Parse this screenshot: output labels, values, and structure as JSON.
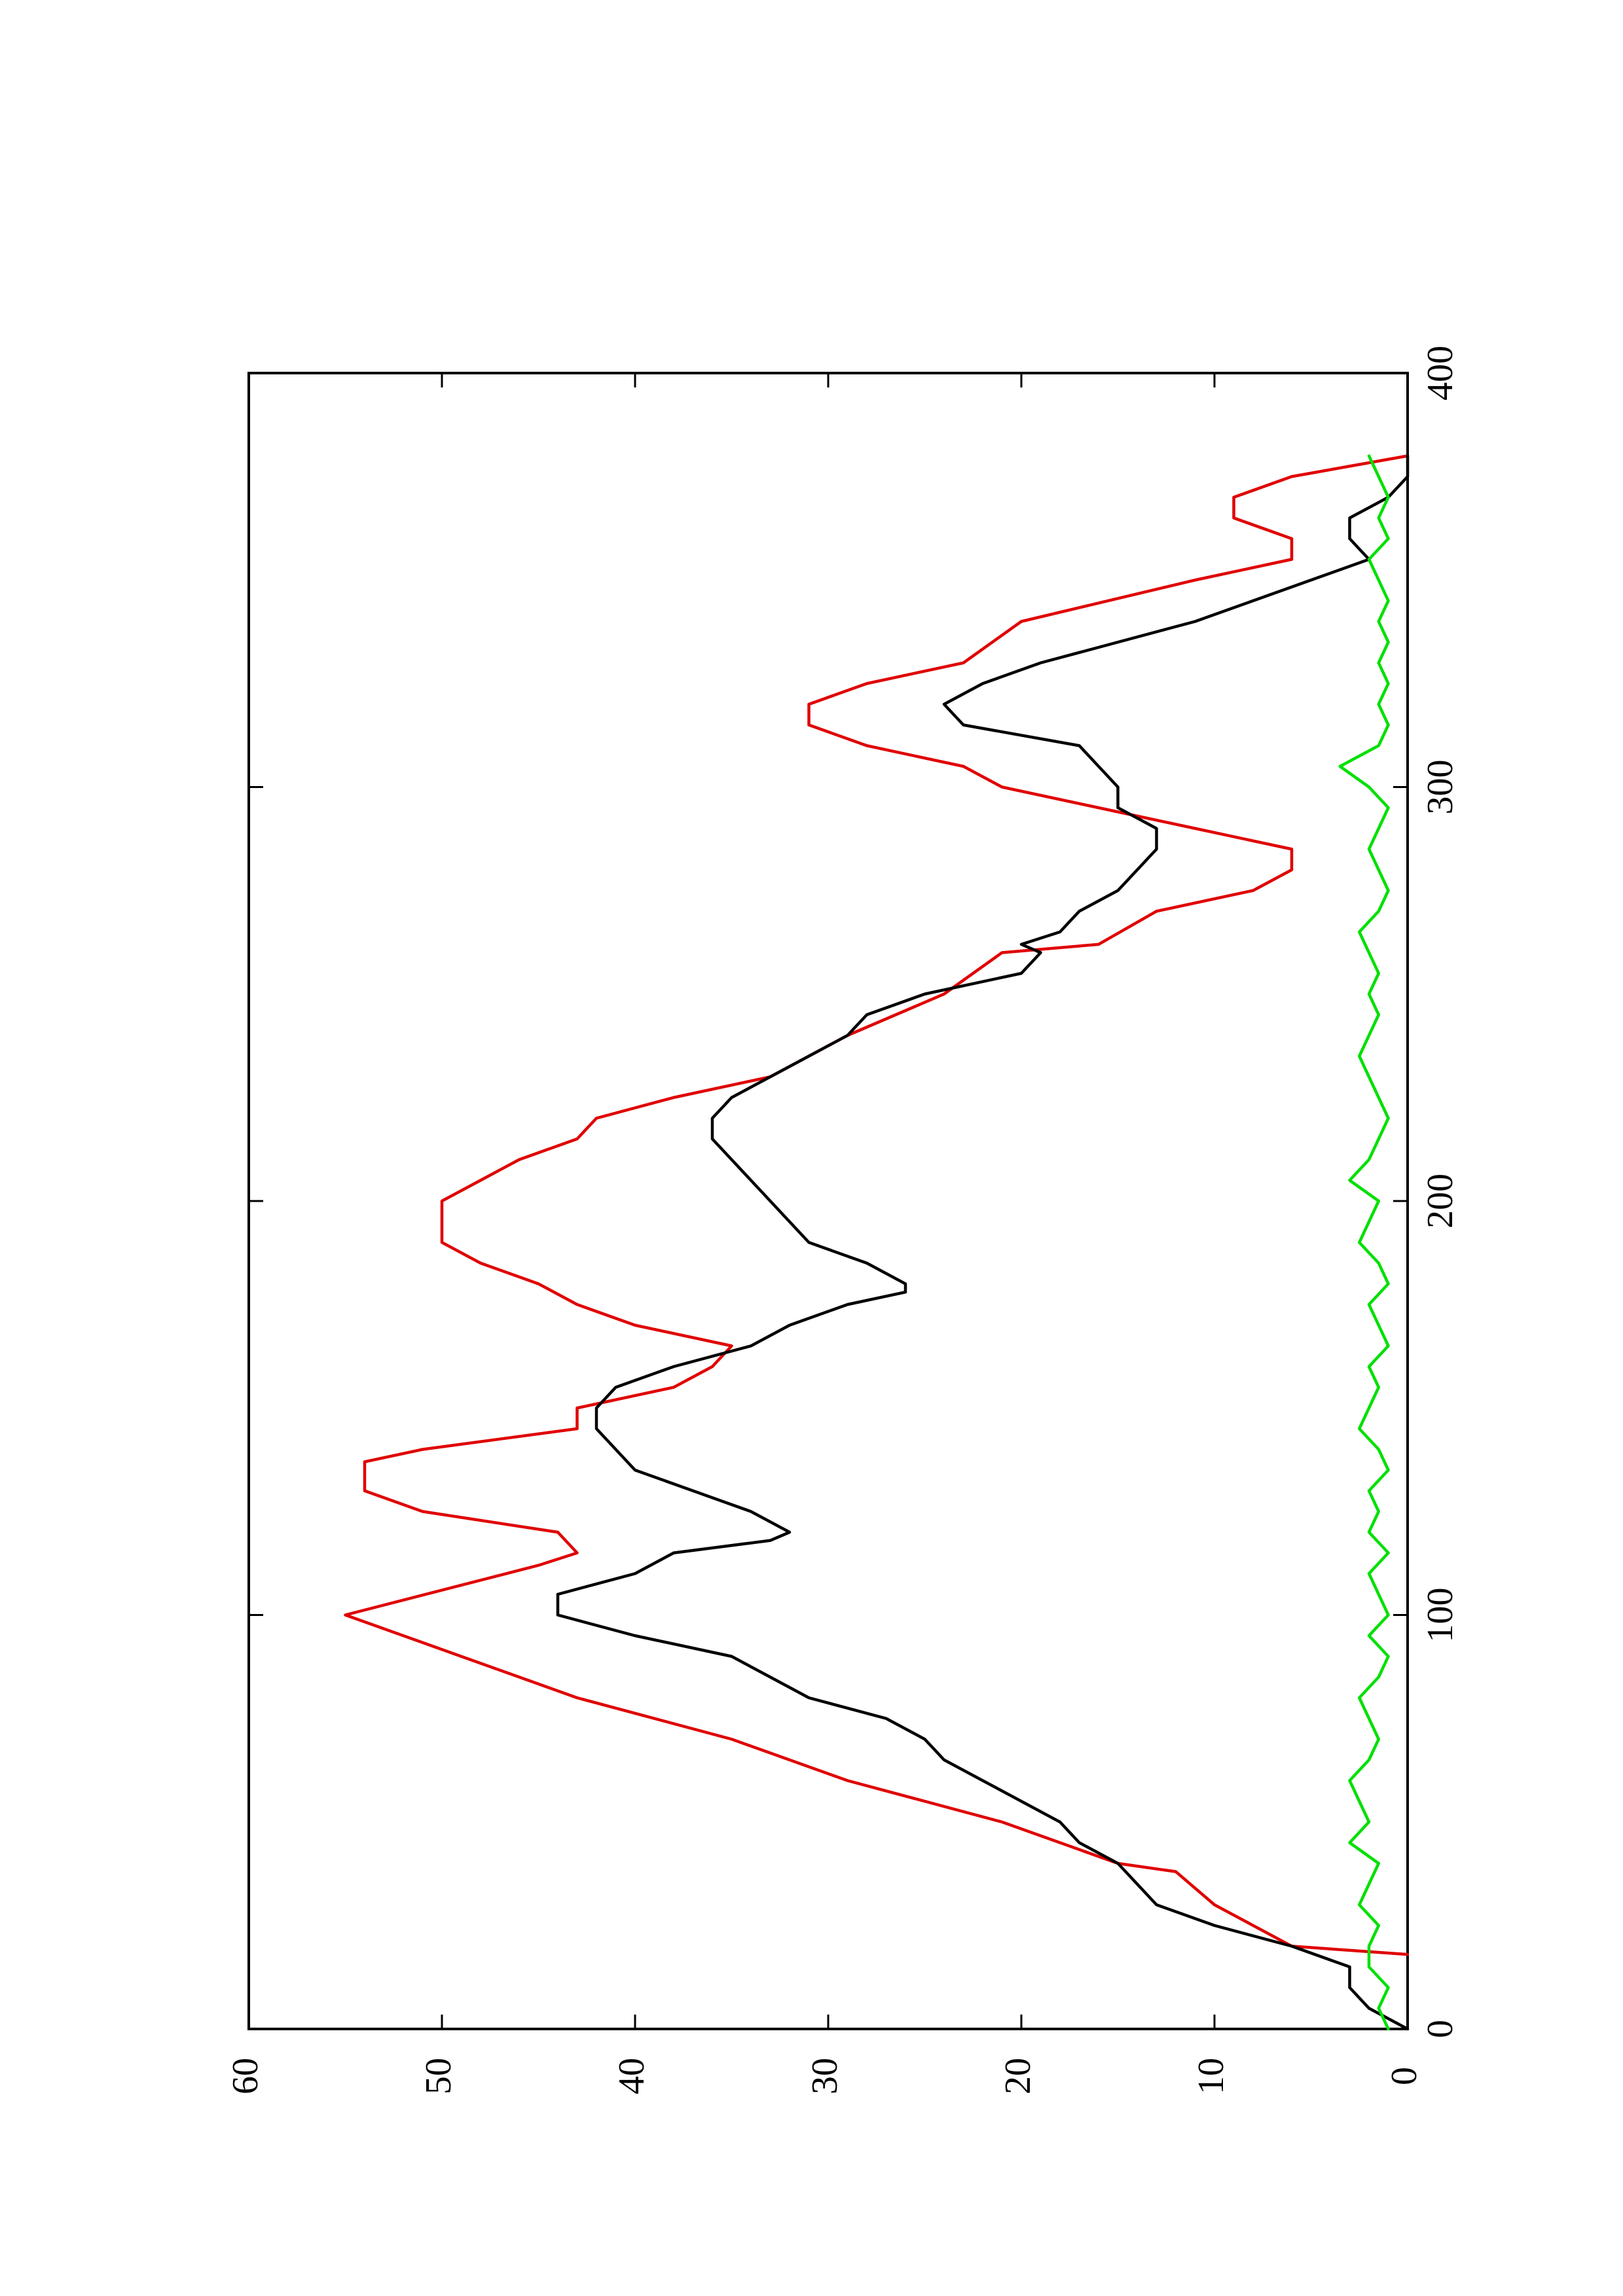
{
  "chart_data": {
    "type": "line",
    "title": "",
    "xlabel": "",
    "ylabel": "",
    "orientation": "rotated 90 degrees counter-clockwise (landscape plot on portrait page)",
    "xlim": [
      0,
      400
    ],
    "ylim": [
      0,
      60
    ],
    "x_ticks": [
      0,
      100,
      200,
      300,
      400
    ],
    "x_tick_labels": [
      "0",
      "100",
      "200",
      "300",
      "400"
    ],
    "y_ticks": [
      0,
      10,
      20,
      30,
      40,
      50,
      60
    ],
    "y_tick_labels": [
      "0",
      "10",
      "20",
      "30",
      "40",
      "50",
      "60"
    ],
    "grid": false,
    "legend": "none",
    "series": [
      {
        "color": "#e00000",
        "x": [
          18,
          20,
          30,
          38,
          40,
          50,
          60,
          70,
          80,
          90,
          100,
          112,
          115,
          120,
          125,
          130,
          137,
          140,
          145,
          150,
          155,
          160,
          165,
          170,
          175,
          180,
          185,
          190,
          195,
          200,
          205,
          210,
          215,
          220,
          225,
          230,
          240,
          250,
          260,
          262,
          270,
          275,
          280,
          285,
          290,
          295,
          300,
          305,
          310,
          315,
          320,
          325,
          330,
          340,
          350,
          355,
          360,
          365,
          370,
          375,
          380
        ],
        "y": [
          0,
          6,
          10,
          12,
          15,
          21,
          29,
          35,
          43,
          49,
          55,
          45,
          43,
          44,
          51,
          54,
          54,
          51,
          43,
          43,
          38,
          36,
          35,
          40,
          43,
          45,
          48,
          50,
          50,
          50,
          48,
          46,
          43,
          42,
          38,
          33,
          29,
          24,
          21,
          16,
          13,
          8,
          6,
          6,
          11,
          16,
          21,
          23,
          28,
          31,
          31,
          28,
          23,
          20,
          11,
          6,
          6,
          9,
          9,
          6,
          0
        ]
      },
      {
        "color": "#000000",
        "x": [
          0,
          5,
          10,
          15,
          20,
          25,
          30,
          35,
          40,
          45,
          50,
          55,
          60,
          65,
          70,
          75,
          80,
          85,
          90,
          95,
          100,
          105,
          110,
          115,
          118,
          120,
          125,
          130,
          135,
          140,
          145,
          150,
          155,
          160,
          165,
          170,
          175,
          178,
          180,
          185,
          190,
          195,
          200,
          205,
          210,
          215,
          220,
          225,
          230,
          235,
          240,
          245,
          250,
          255,
          260,
          262,
          265,
          270,
          275,
          280,
          285,
          290,
          295,
          300,
          305,
          310,
          315,
          320,
          325,
          330,
          335,
          340,
          345,
          350,
          355,
          360,
          365,
          370,
          375,
          380
        ],
        "y": [
          0,
          2,
          3,
          3,
          6,
          10,
          13,
          14,
          15,
          17,
          18,
          20,
          22,
          24,
          25,
          27,
          31,
          33,
          35,
          40,
          44,
          44,
          40,
          38,
          33,
          32,
          34,
          37,
          40,
          41,
          42,
          42,
          41,
          38,
          34,
          32,
          29,
          26,
          26,
          28,
          31,
          32,
          33,
          34,
          35,
          36,
          36,
          35,
          33,
          31,
          29,
          28,
          25,
          20,
          19,
          20,
          18,
          17,
          15,
          14,
          13,
          13,
          15,
          15,
          16,
          17,
          23,
          24,
          22,
          19,
          15,
          11,
          8,
          5,
          2,
          3,
          3,
          1,
          0,
          0
        ]
      },
      {
        "color": "#00e000",
        "x": [
          0,
          5,
          10,
          15,
          20,
          25,
          30,
          35,
          40,
          45,
          50,
          55,
          60,
          65,
          70,
          75,
          80,
          85,
          90,
          95,
          100,
          105,
          110,
          115,
          120,
          125,
          130,
          135,
          140,
          145,
          150,
          155,
          160,
          165,
          170,
          175,
          180,
          185,
          190,
          195,
          200,
          205,
          210,
          215,
          220,
          225,
          230,
          235,
          240,
          245,
          250,
          255,
          260,
          265,
          270,
          275,
          280,
          285,
          290,
          295,
          300,
          305,
          310,
          315,
          320,
          325,
          330,
          335,
          340,
          345,
          350,
          355,
          360,
          365,
          370,
          375,
          380
        ],
        "y": [
          1,
          1.5,
          1,
          2,
          2,
          1.5,
          2.5,
          2,
          1.5,
          3,
          2,
          2.5,
          3,
          2,
          1.5,
          2,
          2.5,
          1.5,
          1,
          2,
          1,
          1.5,
          2,
          1,
          2,
          1.5,
          2,
          1,
          1.5,
          2.5,
          2,
          1.5,
          2,
          1,
          1.5,
          2,
          1,
          1.5,
          2.5,
          2,
          1.5,
          3,
          2,
          1.5,
          1,
          1.5,
          2,
          2.5,
          2,
          1.5,
          2,
          1.5,
          2,
          2.5,
          1.5,
          1,
          1.5,
          2,
          1.5,
          1,
          2,
          3.5,
          1.5,
          1,
          1.5,
          1,
          1.5,
          1,
          1.5,
          1,
          1.5,
          2,
          1,
          1.5,
          1,
          1.5,
          2
        ]
      }
    ]
  }
}
